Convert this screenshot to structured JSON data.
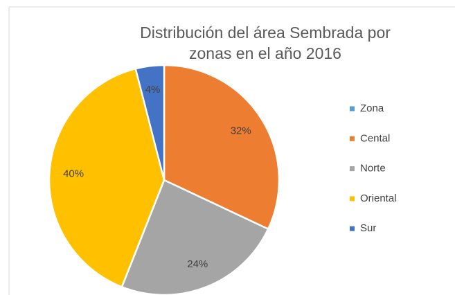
{
  "chart_data": {
    "type": "pie",
    "title": [
      "Distribución del área Sembrada por",
      "zonas en el año 2016"
    ],
    "categories": [
      "Zona",
      "Cental",
      "Norte",
      "Oriental",
      "Sur"
    ],
    "values": [
      0,
      32,
      24,
      40,
      4
    ],
    "value_labels": [
      null,
      "32%",
      "24%",
      "40%",
      "4%"
    ],
    "colors": [
      "#5b9bd5",
      "#ed7d31",
      "#a5a5a5",
      "#ffc000",
      "#4472c4"
    ],
    "legend": "right"
  }
}
